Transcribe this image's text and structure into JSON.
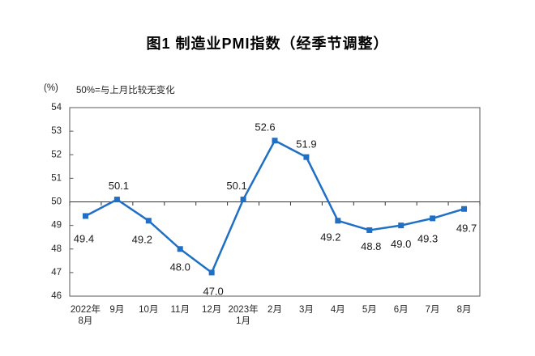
{
  "title": "图1 制造业PMI指数（经季节调整）",
  "axis_note": {
    "unit": "(%)",
    "text": "50%=与上月比较无变化"
  },
  "chart_data": {
    "type": "line",
    "title": "图1 制造业PMI指数（经季节调整）",
    "series_name": "制造业PMI指数",
    "categories": [
      "2022年\n8月",
      "9月",
      "10月",
      "11月",
      "12月",
      "2023年\n1月",
      "2月",
      "3月",
      "4月",
      "5月",
      "6月",
      "7月",
      "8月"
    ],
    "values": [
      49.4,
      50.1,
      49.2,
      48.0,
      47.0,
      50.1,
      52.6,
      51.9,
      49.2,
      48.8,
      49.0,
      49.3,
      49.7
    ],
    "ylabel": "(%)",
    "xlabel": "",
    "ylim": [
      46,
      54
    ],
    "ytick_step": 1,
    "reference_line": 50,
    "grid": false,
    "legend_position": "none",
    "data_labels": true,
    "line_color": "#1f6fc5",
    "marker": "square",
    "axis_color": "#595959",
    "reference_line_color": "#333333",
    "label_color": "#1a1a1a"
  }
}
